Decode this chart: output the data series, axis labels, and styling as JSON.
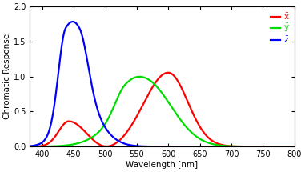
{
  "title": "",
  "xlabel": "Wavelength [nm]",
  "ylabel": "Chromatic Response",
  "xlim": [
    380,
    800
  ],
  "ylim": [
    0.0,
    2.0
  ],
  "xticks": [
    400,
    450,
    500,
    550,
    600,
    650,
    700,
    750,
    800
  ],
  "yticks": [
    0.0,
    0.5,
    1.0,
    1.5,
    2.0
  ],
  "x_color": "#ff0000",
  "y_color": "#00dd00",
  "z_color": "#0000ff",
  "line_width": 1.6,
  "background_color": "#ffffff"
}
